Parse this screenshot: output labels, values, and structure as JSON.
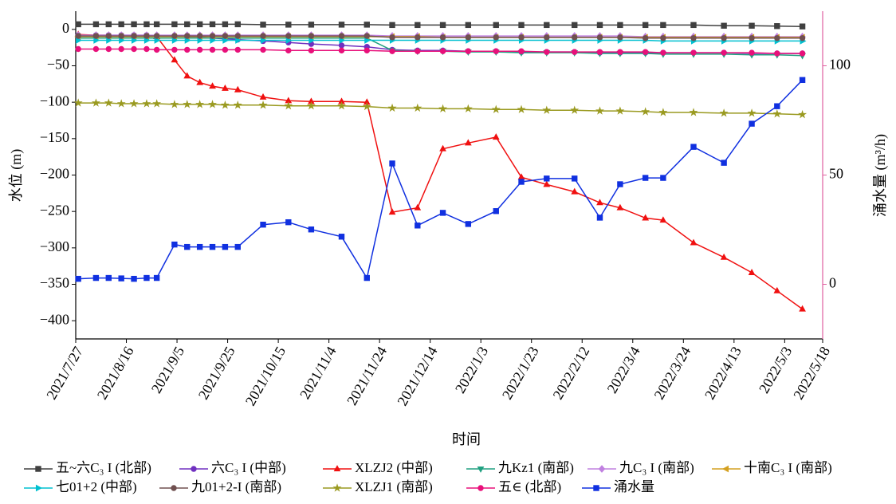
{
  "chart_data": {
    "type": "line",
    "x_label": "时间",
    "y_label": "水位 (m)",
    "y2_label": "涌水量 (m³/h)",
    "xlim": [
      "2021/7/27",
      "2022/5/18"
    ],
    "xticks": [
      "2021/7/27",
      "2021/8/16",
      "2021/9/5",
      "2021/9/25",
      "2021/10/15",
      "2021/11/4",
      "2021/11/24",
      "2021/12/14",
      "2022/1/3",
      "2022/1/23",
      "2022/2/12",
      "2022/3/4",
      "2022/3/24",
      "2022/4/13",
      "2022/5/3",
      "2022/5/18"
    ],
    "ylim": [
      -425,
      25
    ],
    "yticks": [
      {
        "value": -400,
        "label": "−400"
      },
      {
        "value": -350,
        "label": "−350"
      },
      {
        "value": -300,
        "label": "−300"
      },
      {
        "value": -250,
        "label": "−250"
      },
      {
        "value": -200,
        "label": "−200"
      },
      {
        "value": -150,
        "label": "−150"
      },
      {
        "value": -100,
        "label": "−100"
      },
      {
        "value": -50,
        "label": "−50"
      },
      0
    ],
    "y2lim": [
      -25,
      125
    ],
    "y2ticks": [
      0,
      50,
      100
    ],
    "y2_axis_color": "#e060a0",
    "x": [
      "2021/7/28",
      "2021/8/4",
      "2021/8/9",
      "2021/8/14",
      "2021/8/19",
      "2021/8/24",
      "2021/8/28",
      "2021/9/4",
      "2021/9/9",
      "2021/9/14",
      "2021/9/19",
      "2021/9/24",
      "2021/9/29",
      "2021/10/9",
      "2021/10/19",
      "2021/10/28",
      "2021/11/9",
      "2021/11/19",
      "2021/11/29",
      "2021/12/9",
      "2021/12/19",
      "2021/12/29",
      "2022/1/9",
      "2022/1/19",
      "2022/1/29",
      "2022/2/9",
      "2022/2/19",
      "2022/2/27",
      "2022/3/9",
      "2022/3/16",
      "2022/3/28",
      "2022/4/9",
      "2022/4/20",
      "2022/4/30",
      "2022/5/10"
    ],
    "series": [
      {
        "name": "五~六C₃ I (北部)",
        "color": "#404040",
        "marker": "square",
        "values": [
          7,
          7,
          7,
          7,
          7,
          7,
          7,
          7,
          7,
          7,
          7,
          7,
          7,
          6.5,
          6.5,
          6.5,
          6.5,
          6.5,
          6,
          6,
          6,
          6,
          6,
          6,
          6,
          6,
          6,
          6,
          6,
          6,
          6,
          5,
          5,
          4.5,
          4
        ]
      },
      {
        "name": "六C₃ I (中部)",
        "color": "#7030c0",
        "marker": "circle",
        "values": [
          -8,
          -8,
          -8,
          -8,
          -8,
          -8,
          -9,
          -9,
          -10,
          -11,
          -12,
          -13,
          -14,
          -16,
          -18,
          -20,
          -22,
          -24,
          -28,
          -29,
          -29,
          -30,
          -30,
          -31,
          -31,
          -31,
          -32,
          -32,
          -32,
          -32,
          -32,
          -32,
          -33,
          -33,
          -33
        ]
      },
      {
        "name": "XLZJ2 (中部)",
        "color": "#f01010",
        "marker": "triangle",
        "values": [
          -7,
          -8,
          -8,
          -9,
          -9,
          -9,
          -10,
          -42,
          -64,
          -73,
          -78,
          -81,
          -83,
          -93,
          -98,
          -99,
          -99,
          -100,
          -251,
          -245,
          -164,
          -156,
          -148,
          -203,
          -213,
          -223,
          -238,
          -245,
          -259,
          -262,
          -293,
          -313,
          -334,
          -359,
          -384
        ]
      },
      {
        "name": "九Kz1 (南部)",
        "color": "#20a080",
        "marker": "triangle-down",
        "values": [
          -12,
          -12,
          -12,
          -12,
          -12,
          -12,
          -12,
          -12,
          -12,
          -12,
          -12,
          -12,
          -12,
          -12,
          -12,
          -12,
          -12,
          -12,
          -29,
          -30,
          -30,
          -31,
          -31,
          -32,
          -32,
          -32,
          -33,
          -33,
          -33,
          -34,
          -34,
          -34,
          -35,
          -35,
          -36
        ]
      },
      {
        "name": "九C₃ I (南部)",
        "color": "#c080e0",
        "marker": "diamond",
        "values": [
          -8,
          -8,
          -8,
          -8,
          -8,
          -8,
          -8,
          -8,
          -8,
          -8,
          -8,
          -8,
          -8,
          -8,
          -8,
          -8,
          -8,
          -8,
          -9,
          -9,
          -9,
          -9,
          -9,
          -9,
          -9,
          -9,
          -9,
          -9,
          -10,
          -10,
          -10,
          -10,
          -10,
          -10,
          -10
        ]
      },
      {
        "name": "十南C₃ I (南部)",
        "color": "#d4a020",
        "marker": "triangle-left",
        "values": [
          -10,
          -10,
          -10,
          -10,
          -10,
          -10,
          -10,
          -10,
          -10,
          -10,
          -10,
          -10,
          -10,
          -10,
          -10,
          -10,
          -10,
          -10,
          -10,
          -10,
          -11,
          -11,
          -11,
          -11,
          -11,
          -11,
          -11,
          -11,
          -11,
          -11,
          -11,
          -11,
          -11,
          -11,
          -11
        ]
      },
      {
        "name": "七01+2 (中部)",
        "color": "#00c0d0",
        "marker": "triangle-right",
        "values": [
          -15,
          -15,
          -15,
          -15,
          -15,
          -15,
          -15,
          -15,
          -15,
          -15,
          -15,
          -15,
          -15,
          -15,
          -15,
          -15,
          -15,
          -15,
          -15,
          -15,
          -15,
          -15,
          -15,
          -15,
          -15,
          -15,
          -15,
          -15,
          -15,
          -16,
          -16,
          -16,
          -16,
          -16,
          -16
        ]
      },
      {
        "name": "九01+2-I (南部)",
        "color": "#705050",
        "marker": "circle",
        "values": [
          -9,
          -9,
          -9,
          -9,
          -9,
          -9,
          -9,
          -9,
          -9,
          -9,
          -9,
          -9,
          -9,
          -9,
          -9,
          -9,
          -9,
          -9,
          -11,
          -11,
          -11,
          -11,
          -11,
          -11,
          -11,
          -11,
          -11,
          -11,
          -12,
          -12,
          -12,
          -12,
          -12,
          -12,
          -12
        ]
      },
      {
        "name": "XLZJ1 (南部)",
        "color": "#9a9a20",
        "marker": "star",
        "values": [
          -101,
          -101,
          -101,
          -102,
          -102,
          -102,
          -102,
          -103,
          -103,
          -103,
          -103,
          -104,
          -104,
          -104,
          -105,
          -105,
          -105,
          -106,
          -108,
          -108,
          -109,
          -109,
          -110,
          -110,
          -111,
          -111,
          -112,
          -112,
          -113,
          -114,
          -114,
          -115,
          -115,
          -116,
          -117
        ]
      },
      {
        "name": "五∈ (北部)",
        "color": "#e8107a",
        "marker": "circle",
        "values": [
          -27,
          -27,
          -27,
          -27,
          -27,
          -27,
          -28,
          -28,
          -28,
          -28,
          -28,
          -28,
          -28,
          -28,
          -29,
          -29,
          -29,
          -29,
          -30,
          -30,
          -30,
          -30,
          -30,
          -30,
          -31,
          -31,
          -31,
          -31,
          -31,
          -32,
          -32,
          -32,
          -32,
          -33,
          -33
        ]
      },
      {
        "name": "涌水量",
        "color": "#1030e0",
        "marker": "square",
        "axis": "y2",
        "values": [
          2.5,
          2.9,
          2.9,
          2.7,
          2.5,
          2.9,
          2.9,
          18.2,
          17.1,
          17.1,
          17.1,
          17.1,
          17.1,
          27.3,
          28.4,
          25.1,
          21.8,
          2.9,
          55.3,
          26.9,
          32.7,
          27.6,
          33.5,
          46.9,
          48.4,
          48.4,
          30.5,
          45.8,
          48.7,
          48.7,
          62.9,
          55.6,
          73.5,
          81.5,
          93.5
        ]
      }
    ]
  }
}
